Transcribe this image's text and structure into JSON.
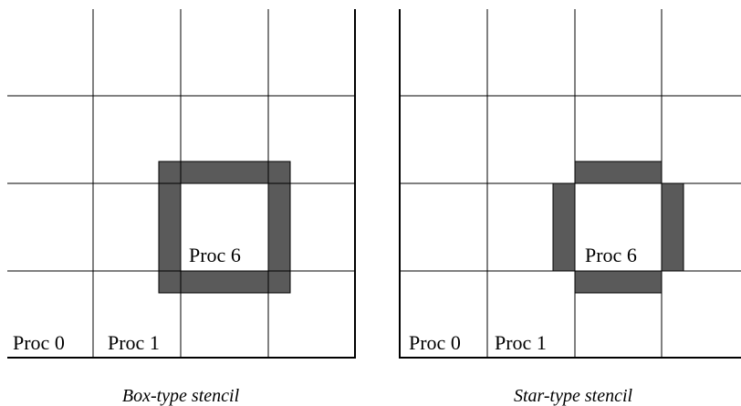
{
  "panels": [
    {
      "caption": "Box-type stencil",
      "labels": {
        "proc0": "Proc 0",
        "proc1": "Proc 1",
        "proc6": "Proc 6"
      }
    },
    {
      "caption": "Star-type stencil",
      "labels": {
        "proc0": "Proc 0",
        "proc1": "Proc 1",
        "proc6": "Proc 6"
      }
    }
  ],
  "colors": {
    "halo_fill": "#5a5a5a",
    "grid_line": "#000000",
    "background": "#ffffff"
  }
}
